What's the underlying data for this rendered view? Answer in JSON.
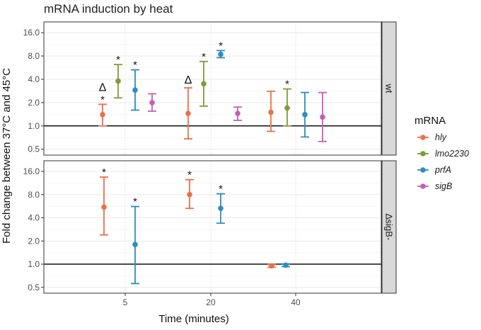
{
  "chart_data": {
    "type": "errorbar-dotplot",
    "title": "mRNA induction by heat",
    "xlabel": "Time (minutes)",
    "ylabel": "Fold change between 37°C and 45°C",
    "y_scale": "log2",
    "ylim": [
      0.42,
      22
    ],
    "yticks": [
      0.5,
      1.0,
      2.0,
      4.0,
      8.0,
      16.0
    ],
    "ytick_labels": [
      "0.5",
      "1.0",
      "2.0",
      "4.0",
      "8.0",
      "16.0"
    ],
    "xticks": [
      5,
      20,
      40
    ],
    "xtick_labels": [
      "5",
      "20",
      "40"
    ],
    "reference_line": 1.0,
    "legend": {
      "title": "mRNA",
      "position": "right",
      "entries": [
        {
          "name": "hly",
          "color": "#E8714A"
        },
        {
          "name": "lmo2230",
          "color": "#7F9A3A"
        },
        {
          "name": "prfA",
          "color": "#2E8CC0"
        },
        {
          "name": "sigB",
          "color": "#C55EB8"
        }
      ]
    },
    "panels": [
      {
        "strip_label": "wt",
        "points": [
          {
            "time": 5,
            "mrna": "hly",
            "mean": 1.4,
            "low": 1.0,
            "high": 1.9,
            "label": "∆\n*"
          },
          {
            "time": 5,
            "mrna": "lmo2230",
            "mean": 3.8,
            "low": 2.3,
            "high": 6.2,
            "label": "*"
          },
          {
            "time": 5,
            "mrna": "prfA",
            "mean": 2.9,
            "low": 1.6,
            "high": 5.3,
            "label": "*"
          },
          {
            "time": 5,
            "mrna": "sigB",
            "mean": 2.0,
            "low": 1.55,
            "high": 2.6,
            "label": ""
          },
          {
            "time": 20,
            "mrna": "hly",
            "mean": 1.45,
            "low": 0.68,
            "high": 3.1,
            "label": "∆"
          },
          {
            "time": 20,
            "mrna": "lmo2230",
            "mean": 3.5,
            "low": 1.8,
            "high": 6.8,
            "label": "*"
          },
          {
            "time": 20,
            "mrna": "prfA",
            "mean": 8.4,
            "low": 7.6,
            "high": 9.4,
            "label": "*"
          },
          {
            "time": 20,
            "mrna": "sigB",
            "mean": 1.45,
            "low": 1.18,
            "high": 1.75,
            "label": ""
          },
          {
            "time": 40,
            "mrna": "hly",
            "mean": 1.5,
            "low": 0.85,
            "high": 2.8,
            "label": ""
          },
          {
            "time": 40,
            "mrna": "lmo2230",
            "mean": 1.7,
            "low": 1.0,
            "high": 3.0,
            "label": "*"
          },
          {
            "time": 40,
            "mrna": "prfA",
            "mean": 1.4,
            "low": 0.72,
            "high": 2.7,
            "label": ""
          },
          {
            "time": 40,
            "mrna": "sigB",
            "mean": 1.3,
            "low": 0.63,
            "high": 2.7,
            "label": ""
          }
        ]
      },
      {
        "strip_label": "∆sigB-",
        "points": [
          {
            "time": 5,
            "mrna": "hly",
            "mean": 5.5,
            "low": 2.4,
            "high": 13.5,
            "label": "*"
          },
          {
            "time": 5,
            "mrna": "prfA",
            "mean": 1.8,
            "low": 0.56,
            "high": 5.6,
            "label": "*"
          },
          {
            "time": 20,
            "mrna": "hly",
            "mean": 8.0,
            "low": 5.3,
            "high": 12.5,
            "label": "*"
          },
          {
            "time": 20,
            "mrna": "prfA",
            "mean": 5.3,
            "low": 3.4,
            "high": 8.2,
            "label": "*"
          },
          {
            "time": 40,
            "mrna": "hly",
            "mean": 0.95,
            "low": 0.91,
            "high": 0.99,
            "label": ""
          },
          {
            "time": 40,
            "mrna": "prfA",
            "mean": 0.97,
            "low": 0.93,
            "high": 1.01,
            "label": ""
          }
        ]
      }
    ]
  }
}
